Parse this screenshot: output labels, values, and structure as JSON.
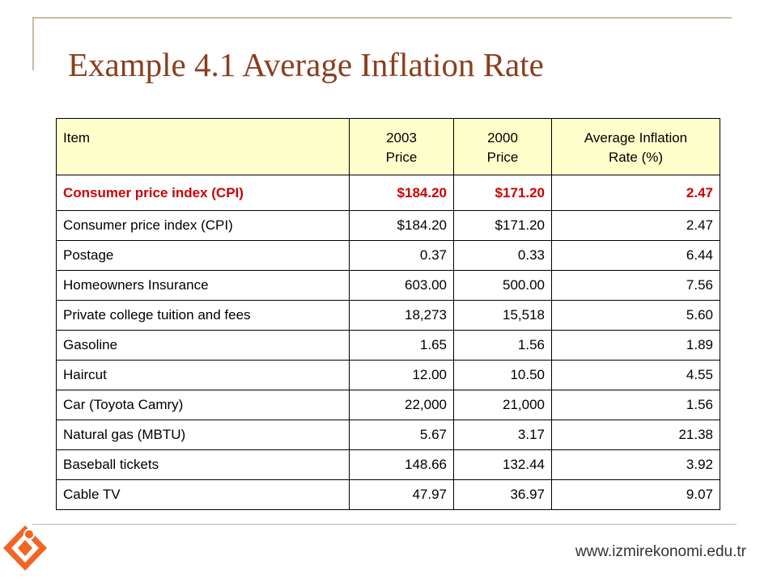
{
  "slide": {
    "title": "Example 4.1 Average Inflation Rate",
    "footer_url": "www.izmirekonomi.edu.tr"
  },
  "table": {
    "headers": [
      {
        "line1": "Item",
        "line2": ""
      },
      {
        "line1": "2003",
        "line2": "Price"
      },
      {
        "line1": "2000",
        "line2": "Price"
      },
      {
        "line1": "Average Inflation",
        "line2": "Rate (%)"
      }
    ],
    "rows": [
      {
        "item": "Consumer price index (CPI)",
        "p2003": "$184.20",
        "p2000": "$171.20",
        "rate": "2.47"
      },
      {
        "item": "Postage",
        "p2003": "0.37",
        "p2000": "0.33",
        "rate": "6.44"
      },
      {
        "item": "Homeowners Insurance",
        "p2003": "603.00",
        "p2000": "500.00",
        "rate": "7.56"
      },
      {
        "item": "Private college tuition and fees",
        "p2003": "18,273",
        "p2000": "15,518",
        "rate": "5.60"
      },
      {
        "item": "Gasoline",
        "p2003": "1.65",
        "p2000": "1.56",
        "rate": "1.89"
      },
      {
        "item": "Haircut",
        "p2003": "12.00",
        "p2000": "10.50",
        "rate": "4.55"
      },
      {
        "item": "Car (Toyota Camry)",
        "p2003": "22,000",
        "p2000": "21,000",
        "rate": "1.56"
      },
      {
        "item": "Natural gas (MBTU)",
        "p2003": "5.67",
        "p2000": "3.17",
        "rate": "21.38"
      },
      {
        "item": "Baseball tickets",
        "p2003": "148.66",
        "p2000": "132.44",
        "rate": "3.92"
      },
      {
        "item": "Cable TV",
        "p2003": "47.97",
        "p2000": "36.97",
        "rate": "9.07"
      }
    ]
  },
  "colors": {
    "title": "#8b3e1e",
    "header_bg": "#ffffcc",
    "cpi_row_text": "#cc0000",
    "logo_orange": "#f26522",
    "frame": "#c8bba3"
  },
  "icons": {
    "logo": "izmir-ekonomi-logo-icon"
  }
}
